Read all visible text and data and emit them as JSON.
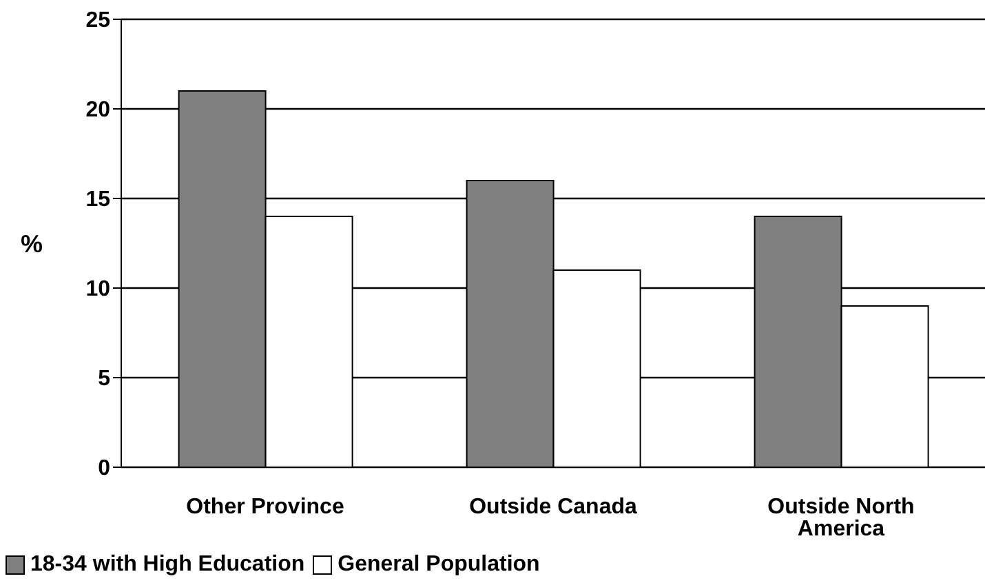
{
  "chart_data": {
    "type": "bar",
    "ylabel": "%",
    "categories": [
      "Other Province",
      "Outside Canada",
      "Outside North America"
    ],
    "series": [
      {
        "name": "18-34 with High Education",
        "color": "#808080",
        "values": [
          21,
          16,
          14
        ]
      },
      {
        "name": "General Population",
        "color": "#ffffff",
        "values": [
          14,
          11,
          9
        ]
      }
    ],
    "ylim": [
      0,
      25
    ],
    "yticks": [
      0,
      5,
      10,
      15,
      20,
      25
    ],
    "grid": "y",
    "legend": "bottom left"
  }
}
